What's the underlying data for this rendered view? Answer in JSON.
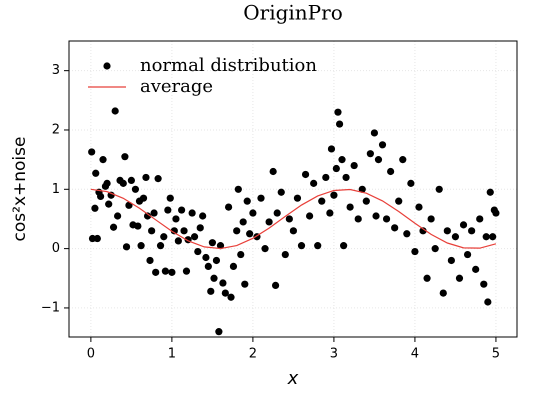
{
  "chart_data": {
    "type": "scatter",
    "title": "OriginPro",
    "xlabel": "x",
    "ylabel": "cos²x+noise",
    "xlim": [
      -0.27,
      5.26
    ],
    "ylim": [
      -1.49,
      3.5
    ],
    "xticks": [
      0,
      1,
      2,
      3,
      4,
      5
    ],
    "yticks": [
      {
        "value": -1,
        "label": "−1"
      },
      0,
      1,
      2,
      3
    ],
    "grid": true,
    "legend": "upper left",
    "series": [
      {
        "name": "normal distribution",
        "type": "scatter",
        "color": "#000000",
        "x": [
          0.01,
          0.02,
          0.05,
          0.06,
          0.08,
          0.1,
          0.12,
          0.15,
          0.18,
          0.2,
          0.22,
          0.25,
          0.28,
          0.3,
          0.33,
          0.36,
          0.4,
          0.42,
          0.44,
          0.47,
          0.5,
          0.52,
          0.55,
          0.58,
          0.6,
          0.62,
          0.65,
          0.68,
          0.7,
          0.73,
          0.75,
          0.78,
          0.8,
          0.83,
          0.86,
          0.9,
          0.92,
          0.95,
          0.98,
          1.0,
          1.03,
          1.05,
          1.08,
          1.12,
          1.15,
          1.18,
          1.2,
          1.25,
          1.28,
          1.32,
          1.35,
          1.38,
          1.42,
          1.45,
          1.48,
          1.5,
          1.52,
          1.55,
          1.58,
          1.6,
          1.63,
          1.66,
          1.7,
          1.73,
          1.76,
          1.8,
          1.82,
          1.85,
          1.88,
          1.9,
          1.93,
          1.96,
          2.0,
          2.05,
          2.1,
          2.15,
          2.2,
          2.25,
          2.28,
          2.3,
          2.35,
          2.4,
          2.45,
          2.5,
          2.55,
          2.6,
          2.65,
          2.7,
          2.75,
          2.8,
          2.85,
          2.9,
          2.95,
          2.97,
          3.0,
          3.03,
          3.05,
          3.07,
          3.1,
          3.12,
          3.15,
          3.2,
          3.25,
          3.3,
          3.35,
          3.4,
          3.45,
          3.5,
          3.52,
          3.55,
          3.6,
          3.65,
          3.7,
          3.75,
          3.8,
          3.85,
          3.9,
          3.95,
          4.0,
          4.05,
          4.1,
          4.15,
          4.2,
          4.25,
          4.3,
          4.35,
          4.4,
          4.45,
          4.5,
          4.55,
          4.6,
          4.65,
          4.7,
          4.75,
          4.8,
          4.85,
          4.88,
          4.9,
          4.93,
          4.96,
          4.98,
          5.0
        ],
        "values": [
          1.63,
          0.17,
          0.68,
          1.27,
          0.17,
          0.95,
          0.88,
          1.5,
          1.05,
          1.1,
          0.75,
          0.9,
          0.36,
          2.32,
          0.55,
          1.15,
          1.1,
          1.55,
          0.03,
          0.73,
          1.15,
          0.4,
          1.0,
          0.38,
          0.8,
          0.05,
          0.85,
          1.2,
          0.55,
          -0.2,
          0.3,
          0.6,
          -0.4,
          1.18,
          0.05,
          0.2,
          -0.38,
          0.65,
          0.85,
          -0.4,
          0.3,
          0.5,
          0.13,
          0.65,
          0.3,
          -0.38,
          0.15,
          0.6,
          0.2,
          -0.05,
          0.35,
          0.55,
          -0.15,
          -0.3,
          -0.72,
          0.1,
          -0.5,
          -0.2,
          -1.4,
          0.05,
          -0.58,
          -0.75,
          0.7,
          -0.82,
          -0.3,
          0.3,
          1.0,
          -0.1,
          0.45,
          -0.6,
          0.8,
          0.25,
          0.6,
          0.2,
          0.85,
          0.0,
          0.45,
          1.3,
          -0.62,
          0.6,
          0.95,
          -0.1,
          0.5,
          0.3,
          0.85,
          0.05,
          1.25,
          0.55,
          1.1,
          0.05,
          0.8,
          1.2,
          0.6,
          1.68,
          0.9,
          1.35,
          2.3,
          2.1,
          1.5,
          0.05,
          1.2,
          0.7,
          1.4,
          0.5,
          1.0,
          0.8,
          1.6,
          1.95,
          0.55,
          1.5,
          1.75,
          0.5,
          1.3,
          0.35,
          0.8,
          1.5,
          0.25,
          1.1,
          -0.05,
          0.7,
          0.3,
          -0.5,
          0.5,
          0.0,
          1.0,
          -0.75,
          0.3,
          -0.2,
          0.2,
          -0.5,
          0.4,
          -0.1,
          0.3,
          -0.35,
          0.5,
          -0.6,
          0.2,
          -0.9,
          0.95,
          0.2,
          0.65,
          0.6
        ]
      },
      {
        "name": "average",
        "type": "line",
        "color": "#e8403a",
        "x": [
          0,
          0.2,
          0.4,
          0.6,
          0.8,
          1.0,
          1.2,
          1.4,
          1.6,
          1.8,
          2.0,
          2.2,
          2.4,
          2.6,
          2.8,
          3.0,
          3.2,
          3.4,
          3.6,
          3.8,
          4.0,
          4.2,
          4.4,
          4.6,
          4.8,
          5.0
        ],
        "values": [
          1,
          0.9605,
          0.8484,
          0.6812,
          0.4854,
          0.2919,
          0.1313,
          0.0289,
          0.0009,
          0.0516,
          0.1732,
          0.3463,
          0.5437,
          0.7343,
          0.8877,
          0.9801,
          0.9966,
          0.9347,
          0.8042,
          0.6256,
          0.4272,
          0.2404,
          0.0945,
          0.0126,
          0.0077,
          0.0805
        ]
      }
    ]
  }
}
